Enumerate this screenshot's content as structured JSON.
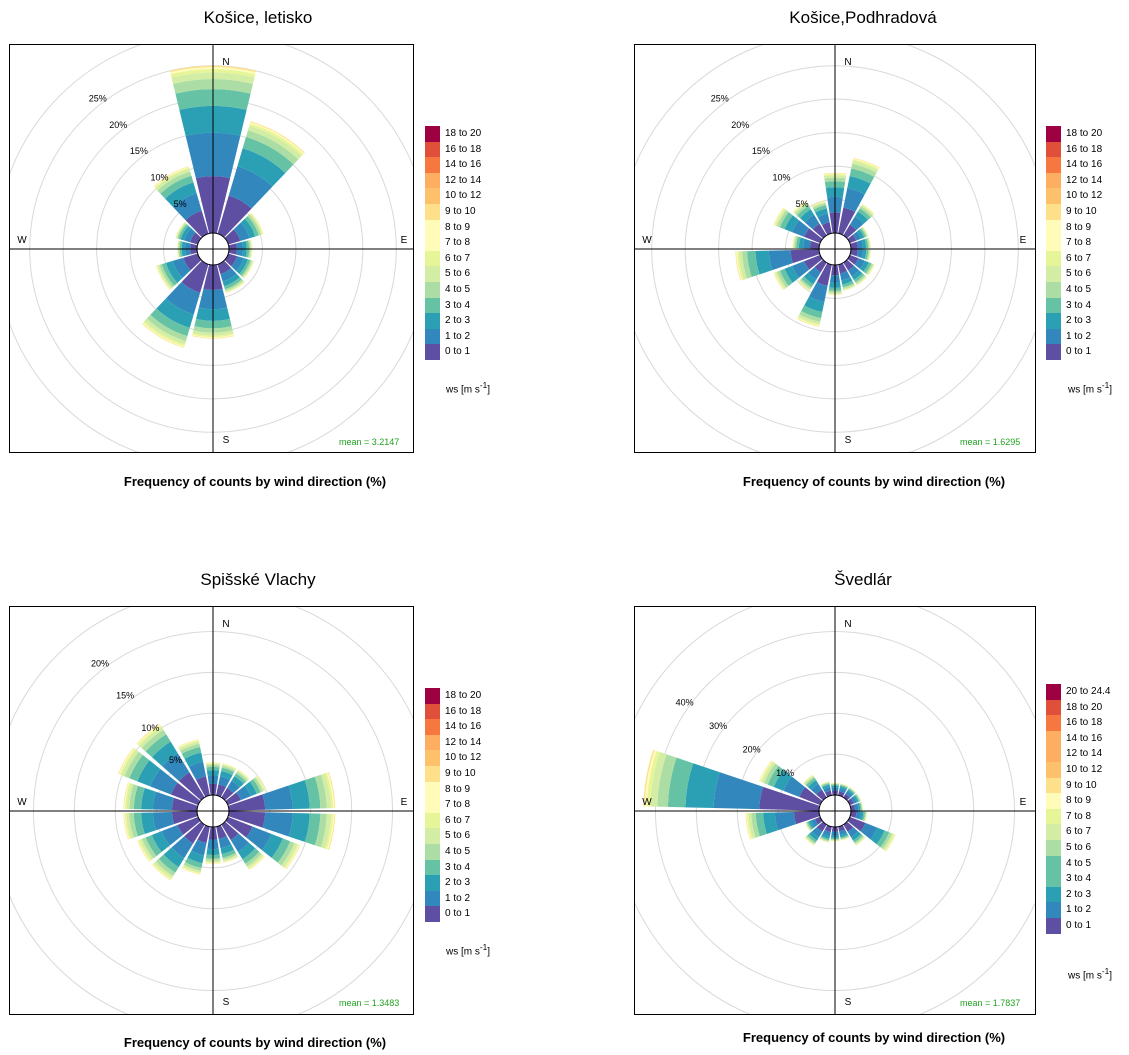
{
  "footer_label": "Frequency of counts by wind direction (%)",
  "unit_label": "ws [m s",
  "unit_exp": "-1",
  "compass": {
    "n": "N",
    "e": "E",
    "s": "S",
    "w": "W"
  },
  "palette": [
    "#5e4fa2",
    "#3288bd",
    "#2ba0b5",
    "#66c2a5",
    "#abdda4",
    "#d4eda4",
    "#e6f598",
    "#fffbb8",
    "#fee08b",
    "#fdc06b",
    "#fdae61",
    "#f6773f",
    "#e04f3a",
    "#9e0142"
  ],
  "chart_data": [
    {
      "type": "polar-bar",
      "title": "Košice, letisko",
      "mean_label": "mean = 3.2147",
      "ring_labels": [
        "5%",
        "10%",
        "15%",
        "20%",
        "25%"
      ],
      "rmax": 27.5,
      "legend": [
        "0 to 1",
        "1 to 2",
        "2 to 3",
        "3 to 4",
        "4 to 5",
        "5 to 6",
        "6 to 7",
        "7 to 8",
        "8 to 9",
        "9 to 10",
        "10 to 12",
        "12 to 14",
        "14 to 16",
        "16 to 18",
        "18 to 20"
      ],
      "directions": [
        0,
        30,
        60,
        90,
        120,
        150,
        180,
        210,
        240,
        270,
        300,
        330
      ],
      "totals": [
        25.0,
        17.5,
        5.5,
        3.5,
        4.0,
        4.5,
        11.0,
        13.0,
        6.5,
        3.0,
        3.5,
        10.5
      ]
    },
    {
      "type": "polar-bar",
      "title": "Košice,Podhradová",
      "mean_label": "mean = 1.6295",
      "ring_labels": [
        "5%",
        "10%",
        "15%",
        "20%",
        "25%"
      ],
      "rmax": 27.5,
      "legend": [
        "0 to 1",
        "1 to 2",
        "2 to 3",
        "3 to 4",
        "4 to 5",
        "5 to 6",
        "6 to 7",
        "7 to 8",
        "8 to 9",
        "9 to 10",
        "10 to 12",
        "12 to 14",
        "14 to 16",
        "16 to 18",
        "18 to 20"
      ],
      "directions": [
        0,
        20,
        40,
        60,
        80,
        100,
        120,
        140,
        160,
        180,
        200,
        220,
        240,
        260,
        280,
        300,
        320,
        340
      ],
      "totals": [
        9.0,
        11.5,
        5.5,
        3.0,
        3.0,
        3.0,
        4.0,
        4.0,
        4.0,
        4.5,
        9.5,
        5.0,
        7.5,
        12.5,
        4.0,
        7.5,
        6.0,
        5.0
      ]
    },
    {
      "type": "polar-bar",
      "title": "Spišské Vlachy",
      "mean_label": "mean = 1.3483",
      "ring_labels": [
        "5%",
        "10%",
        "15%",
        "20%"
      ],
      "rmax": 22.5,
      "legend": [
        "0 to 1",
        "1 to 2",
        "2 to 3",
        "3 to 4",
        "4 to 5",
        "5 to 6",
        "6 to 7",
        "7 to 8",
        "8 to 9",
        "9 to 10",
        "10 to 12",
        "12 to 14",
        "14 to 16",
        "16 to 18",
        "18 to 20"
      ],
      "directions": [
        0,
        20,
        40,
        60,
        80,
        100,
        120,
        140,
        160,
        180,
        200,
        220,
        240,
        260,
        280,
        300,
        320,
        340
      ],
      "totals": [
        4.0,
        4.0,
        4.0,
        5.0,
        13.0,
        13.0,
        9.5,
        6.5,
        4.5,
        4.5,
        6.0,
        8.0,
        8.0,
        9.0,
        9.0,
        10.5,
        10.5,
        7.0
      ]
    },
    {
      "type": "polar-bar",
      "title": "Švedlár",
      "mean_label": "mean = 1.7837",
      "ring_labels": [
        "10%",
        "20%",
        "30%",
        "40%"
      ],
      "rmax": 45,
      "legend": [
        "0 to 1",
        "1 to 2",
        "2 to 3",
        "3 to 4",
        "4 to 5",
        "5 to 6",
        "6 to 7",
        "7 to 8",
        "8 to 9",
        "9 to 10",
        "10 to 12",
        "12 to 14",
        "14 to 16",
        "16 to 18",
        "18 to 20",
        "20 to 24.4"
      ],
      "directions": [
        0,
        20,
        40,
        60,
        80,
        100,
        120,
        140,
        160,
        180,
        200,
        220,
        240,
        260,
        280,
        300,
        320,
        340
      ],
      "totals": [
        3.0,
        3.0,
        3.0,
        3.0,
        3.0,
        4.0,
        12.0,
        6.0,
        3.5,
        3.5,
        4.0,
        6.0,
        4.0,
        18.0,
        43.0,
        16.0,
        6.5,
        3.5
      ]
    }
  ]
}
